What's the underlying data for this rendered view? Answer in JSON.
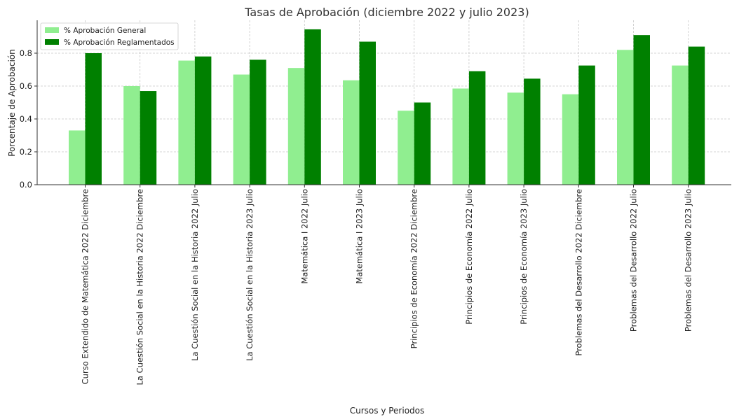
{
  "chart_data": {
    "type": "bar",
    "title": "Tasas de Aprobación (diciembre 2022 y julio 2023)",
    "xlabel": "Cursos y Periodos",
    "ylabel": "Porcentaje de Aprobación",
    "ylim": [
      0,
      1.0
    ],
    "yticks": [
      "0.0",
      "0.2",
      "0.4",
      "0.6",
      "0.8"
    ],
    "ytick_values": [
      0.0,
      0.2,
      0.4,
      0.6,
      0.8
    ],
    "grid": true,
    "legend_position": "top-left",
    "categories": [
      "Curso Extendido de Matemática 2022 Diciembre",
      "La Cuestión Social en la Historia 2022 Diciembre",
      "La Cuestión Social en la Historia 2022 Julio",
      "La Cuestión Social en la Historia 2023 Julio",
      "Matemática I 2022 Julio",
      "Matemática I 2023 Julio",
      "Principios de Economía 2022 Diciembre",
      "Principios de Economía 2022 Julio",
      "Principios de Economía 2023 Julio",
      "Problemas del Desarrollo 2022 Diciembre",
      "Problemas del Desarrollo 2022 Julio",
      "Problemas del Desarrollo 2023 Julio"
    ],
    "series": [
      {
        "name": "% Aprobación General",
        "color": "#90ee90",
        "values": [
          0.33,
          0.6,
          0.755,
          0.67,
          0.71,
          0.635,
          0.45,
          0.585,
          0.56,
          0.55,
          0.82,
          0.725
        ]
      },
      {
        "name": "% Aprobación Reglamentados",
        "color": "#008000",
        "values": [
          0.8,
          0.57,
          0.78,
          0.76,
          0.945,
          0.87,
          0.5,
          0.69,
          0.645,
          0.725,
          0.91,
          0.84
        ]
      }
    ]
  }
}
